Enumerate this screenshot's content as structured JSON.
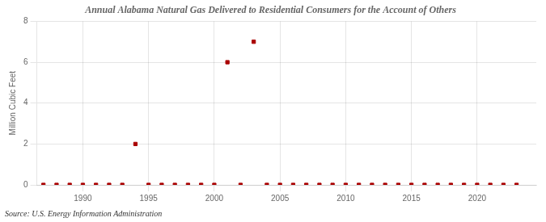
{
  "chart_data": {
    "type": "scatter",
    "title": "Annual Alabama Natural Gas Delivered to Residential Consumers for the Account of Others",
    "ylabel": "Million Cubic Feet",
    "annotation": "Source: U.S. Energy Information Administration",
    "x": [
      1987,
      1988,
      1989,
      1990,
      1991,
      1992,
      1993,
      1994,
      1995,
      1996,
      1997,
      1998,
      1999,
      2000,
      2001,
      2002,
      2003,
      2004,
      2005,
      2006,
      2007,
      2008,
      2009,
      2010,
      2011,
      2012,
      2013,
      2014,
      2015,
      2016,
      2017,
      2018,
      2019,
      2020,
      2021,
      2022,
      2023
    ],
    "values": [
      0,
      0,
      0,
      0,
      0,
      0,
      0,
      2.0,
      0,
      0,
      0,
      0,
      0,
      0,
      6.0,
      0,
      7.0,
      0,
      0,
      0,
      0,
      0,
      0,
      0,
      0,
      0,
      0,
      0,
      0,
      0,
      0,
      0,
      0,
      0,
      0,
      0,
      0
    ],
    "color": "#aa0000",
    "marker": "square",
    "xlim": [
      1986.5,
      2024.5
    ],
    "xticks": [
      1990,
      1995,
      2000,
      2005,
      2010,
      2015,
      2020
    ],
    "ylim": [
      0,
      8
    ],
    "yticks": [
      0,
      2,
      4,
      6,
      8
    ],
    "grid": true
  }
}
